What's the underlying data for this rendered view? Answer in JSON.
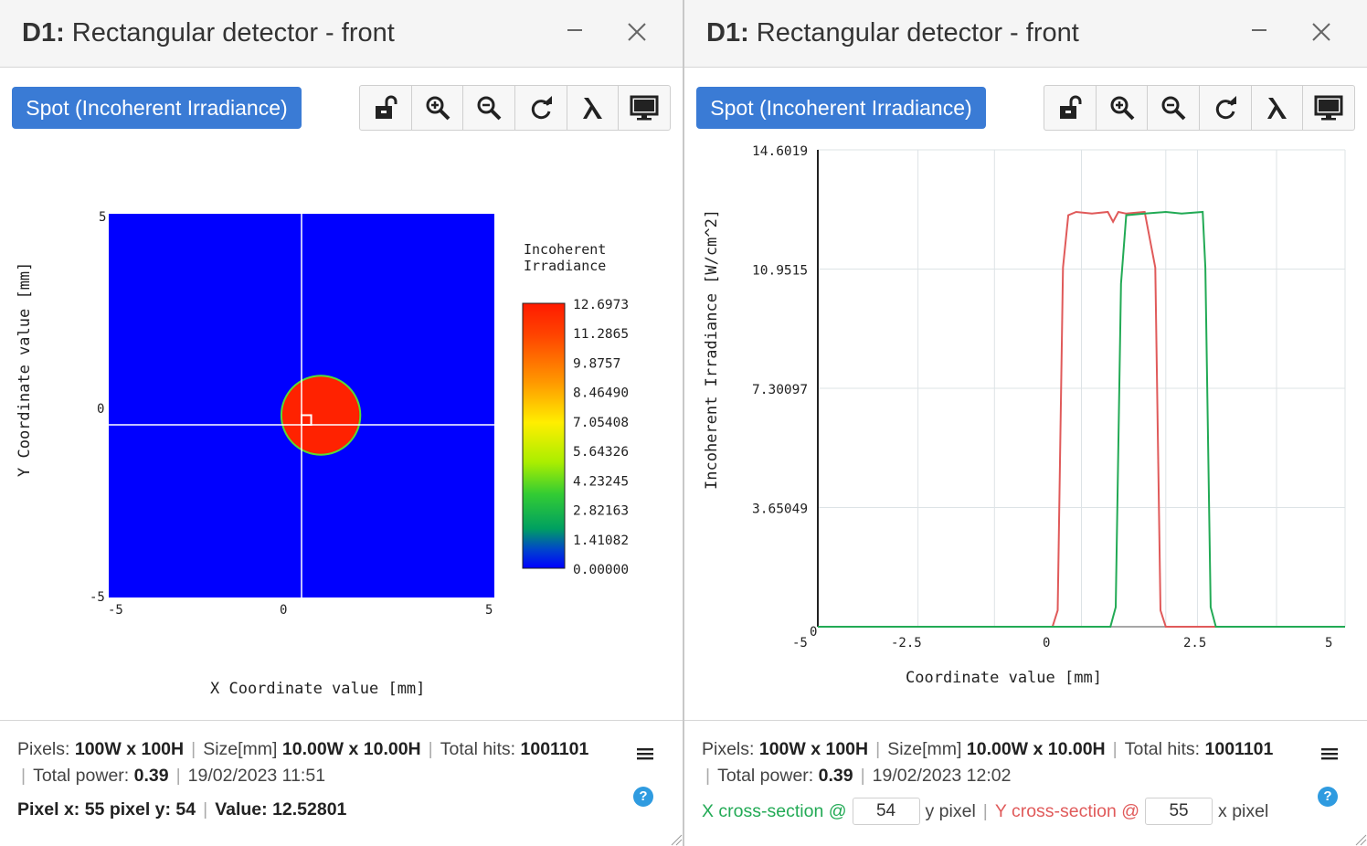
{
  "left": {
    "title_bold": "D1:",
    "title_rest": " Rectangular detector - front",
    "mode_label": "Spot (Incoherent Irradiance)",
    "toolbar_icons": [
      "unlock-icon",
      "zoom-in-icon",
      "zoom-out-icon",
      "refresh-icon",
      "lambda-icon",
      "monitor-icon"
    ],
    "footer": {
      "pixels_label": "Pixels:",
      "pixels_value": "100W x 100H",
      "size_label": "Size[mm]",
      "size_value": "10.00W x 10.00H",
      "hits_label": "Total hits:",
      "hits_value": "1001101",
      "power_label": "Total power:",
      "power_value": "0.39",
      "timestamp": "19/02/2023 11:51",
      "pixel_readout": "Pixel x: 55 pixel y: 54",
      "value_readout": "Value: 12.52801"
    }
  },
  "right": {
    "title_bold": "D1:",
    "title_rest": " Rectangular detector - front",
    "mode_label": "Spot (Incoherent Irradiance)",
    "toolbar_icons": [
      "unlock-icon",
      "zoom-in-icon",
      "zoom-out-icon",
      "refresh-icon",
      "lambda-icon",
      "monitor-icon"
    ],
    "footer": {
      "pixels_label": "Pixels:",
      "pixels_value": "100W x 100H",
      "size_label": "Size[mm]",
      "size_value": "10.00W x 10.00H",
      "hits_label": "Total hits:",
      "hits_value": "1001101",
      "power_label": "Total power:",
      "power_value": "0.39",
      "timestamp": "19/02/2023 12:02",
      "xsec_label": "X cross-section @",
      "xsec_value": "54",
      "xsec_unit": "y pixel",
      "ysec_label": "Y cross-section @",
      "ysec_value": "55",
      "ysec_unit": "x pixel"
    }
  },
  "chart_data": [
    {
      "type": "heatmap",
      "xlabel": "X Coordinate value [mm]",
      "ylabel": "Y Coordinate value [mm]",
      "xlim": [
        -5,
        5
      ],
      "ylim": [
        -5,
        5
      ],
      "x_ticks": [
        "-5",
        "0",
        "5"
      ],
      "y_ticks": [
        "5",
        "0",
        "-5"
      ],
      "colorbar_title": [
        "Incoherent",
        "Irradiance"
      ],
      "colorbar_ticks": [
        "12.6973",
        "11.2865",
        "9.8757",
        "8.46490",
        "7.05408",
        "5.64326",
        "4.23245",
        "2.82163",
        "1.41082",
        "0.00000"
      ],
      "background_value": 0.0,
      "spot": {
        "shape": "circle",
        "center_mm": [
          0.5,
          -0.25
        ],
        "radius_mm": 1.0,
        "value": 12.6973
      },
      "crosshair_mm": [
        0.0,
        -0.5
      ],
      "selected_pixel": [
        55,
        54
      ],
      "colors": {
        "low": "#0000ff",
        "high": "#ff2200"
      }
    },
    {
      "type": "line",
      "xlabel": "Coordinate value [mm]",
      "ylabel": "Incoherent Irradiance [W/cm^2]",
      "xlim": [
        -5,
        5
      ],
      "ylim": [
        0,
        14.6019
      ],
      "x_ticks": [
        "-5",
        "-2.5",
        "0",
        "2.5",
        "5"
      ],
      "y_ticks": [
        "14.6019",
        "10.9515",
        "7.30097",
        "3.65049",
        "0"
      ],
      "grid": true,
      "series": [
        {
          "color": "#e05a5a",
          "x": [
            -5,
            -0.55,
            -0.45,
            -0.35,
            -0.25,
            -0.1,
            0.2,
            0.5,
            0.6,
            0.7,
            0.85,
            1.2,
            1.4,
            1.5,
            1.6,
            1.7,
            5
          ],
          "y": [
            0,
            0,
            0.5,
            11.0,
            12.6,
            12.7,
            12.65,
            12.7,
            12.4,
            12.7,
            12.65,
            12.7,
            11.0,
            0.5,
            0,
            0,
            0
          ]
        },
        {
          "color": "#22aa55",
          "x": [
            -5,
            0.55,
            0.65,
            0.75,
            0.85,
            1.2,
            1.6,
            1.9,
            2.3,
            2.35,
            2.45,
            2.55,
            5
          ],
          "y": [
            0,
            0,
            0.6,
            10.5,
            12.6,
            12.65,
            12.7,
            12.65,
            12.7,
            11.0,
            0.6,
            0,
            0
          ]
        }
      ]
    }
  ]
}
